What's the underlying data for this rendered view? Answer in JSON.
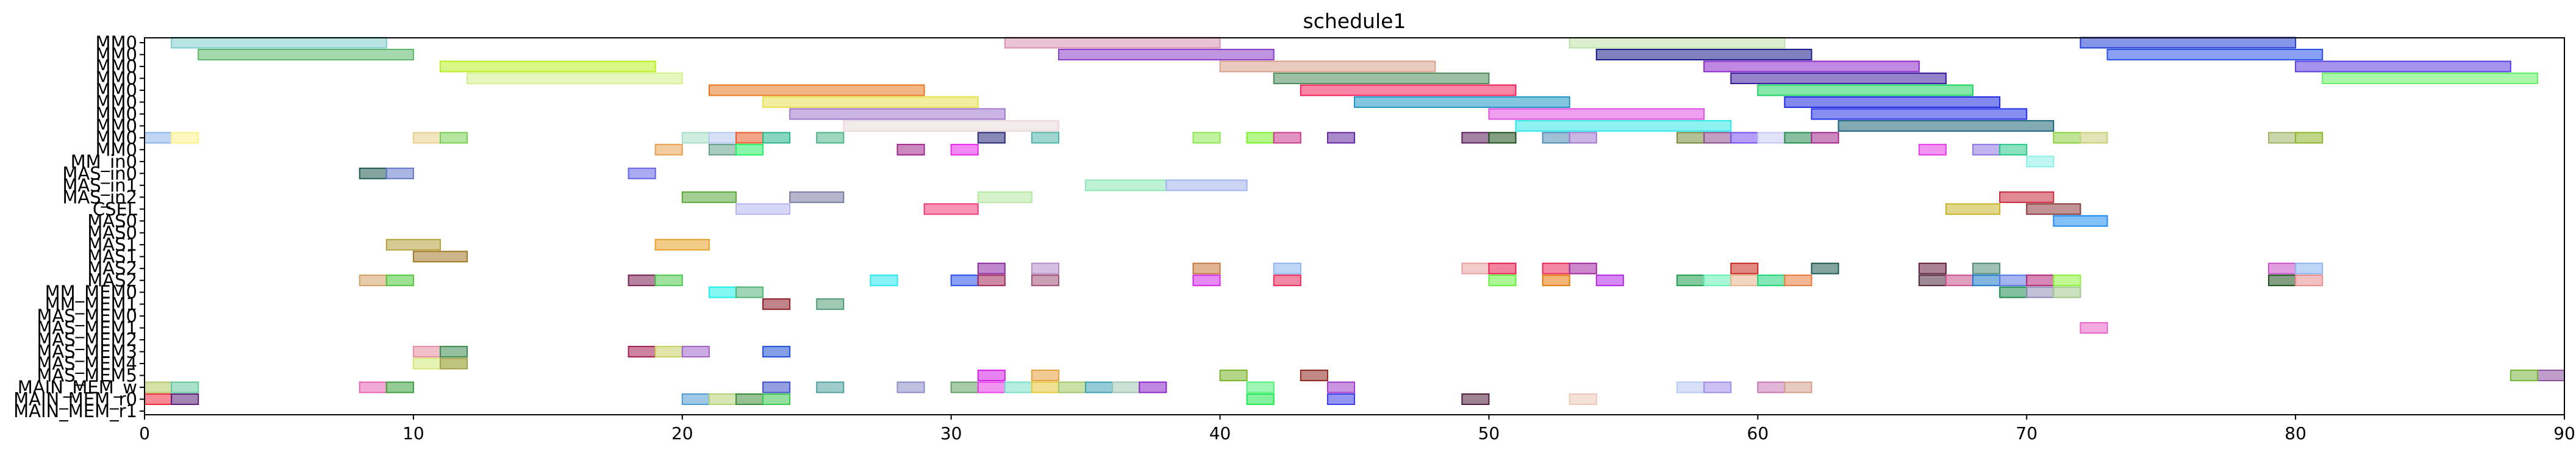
{
  "chart_data": {
    "type": "gantt",
    "title": "schedule1",
    "xlabel": "",
    "ylabel": "",
    "xlim": [
      0,
      90
    ],
    "xticks": [
      0,
      10,
      20,
      30,
      40,
      50,
      60,
      70,
      80,
      90
    ],
    "grid": false,
    "rows": [
      "MM0",
      "MM0",
      "MM0",
      "MM0",
      "MM0",
      "MM0",
      "MM0",
      "MM0",
      "MM0",
      "MM0",
      "MM_in0",
      "MAS_in0",
      "MAS_in1",
      "MAS_in2",
      "CSEL",
      "MAS0",
      "MAS0",
      "MAS1",
      "MAS1",
      "MAS2",
      "MAS2",
      "MM_MEM0",
      "MM_MEM1",
      "MAS_MEM0",
      "MAS_MEM1",
      "MAS_MEM2",
      "MAS_MEM3",
      "MAS_MEM4",
      "MAS_MEM5",
      "MAIN_MEM_w",
      "MAIN_MEM_r0",
      "MAIN_MEM_r1"
    ],
    "bars": [
      {
        "row": 0,
        "start": 1,
        "end": 9,
        "color": "#7fcdcd"
      },
      {
        "row": 0,
        "start": 32,
        "end": 40,
        "color": "#d98fb4"
      },
      {
        "row": 0,
        "start": 53,
        "end": 61,
        "color": "#bde2a8"
      },
      {
        "row": 0,
        "start": 72,
        "end": 80,
        "color": "#1f3fd4"
      },
      {
        "row": 1,
        "start": 2,
        "end": 10,
        "color": "#5cb86c"
      },
      {
        "row": 1,
        "start": 34,
        "end": 42,
        "color": "#8a3dc8"
      },
      {
        "row": 1,
        "start": 54,
        "end": 62,
        "color": "#1a1a8c"
      },
      {
        "row": 1,
        "start": 73,
        "end": 81,
        "color": "#2a52e8"
      },
      {
        "row": 2,
        "start": 11,
        "end": 19,
        "color": "#b8f020"
      },
      {
        "row": 2,
        "start": 40,
        "end": 48,
        "color": "#d9a08c"
      },
      {
        "row": 2,
        "start": 58,
        "end": 66,
        "color": "#8c28c8"
      },
      {
        "row": 2,
        "start": 80,
        "end": 88,
        "color": "#5a3ce0"
      },
      {
        "row": 3,
        "start": 12,
        "end": 20,
        "color": "#d4f08c"
      },
      {
        "row": 3,
        "start": 42,
        "end": 50,
        "color": "#4c8c5a"
      },
      {
        "row": 3,
        "start": 59,
        "end": 67,
        "color": "#3a1a9c"
      },
      {
        "row": 3,
        "start": 81,
        "end": 89,
        "color": "#64f064"
      },
      {
        "row": 4,
        "start": 21,
        "end": 29,
        "color": "#e87820"
      },
      {
        "row": 4,
        "start": 43,
        "end": 51,
        "color": "#f0205a"
      },
      {
        "row": 4,
        "start": 60,
        "end": 68,
        "color": "#20d464"
      },
      {
        "row": 5,
        "start": 23,
        "end": 31,
        "color": "#e8e050"
      },
      {
        "row": 5,
        "start": 45,
        "end": 53,
        "color": "#1e96c8"
      },
      {
        "row": 5,
        "start": 61,
        "end": 69,
        "color": "#1a28e0"
      },
      {
        "row": 6,
        "start": 24,
        "end": 32,
        "color": "#a078d0"
      },
      {
        "row": 6,
        "start": 50,
        "end": 58,
        "color": "#e050e0"
      },
      {
        "row": 6,
        "start": 62,
        "end": 70,
        "color": "#2432e8"
      },
      {
        "row": 7,
        "start": 26,
        "end": 34,
        "color": "#ead8dc"
      },
      {
        "row": 7,
        "start": 51,
        "end": 59,
        "color": "#30e8e8"
      },
      {
        "row": 7,
        "start": 63,
        "end": 71,
        "color": "#1a6478"
      },
      {
        "row": 8,
        "start": 0,
        "end": 1,
        "color": "#8cb4e8"
      },
      {
        "row": 8,
        "start": 1,
        "end": 2,
        "color": "#fff08c"
      },
      {
        "row": 8,
        "start": 10,
        "end": 11,
        "color": "#e8d08c"
      },
      {
        "row": 8,
        "start": 11,
        "end": 12,
        "color": "#78d050"
      },
      {
        "row": 8,
        "start": 20,
        "end": 21,
        "color": "#a8dcc8"
      },
      {
        "row": 8,
        "start": 21,
        "end": 22,
        "color": "#b4c8f0"
      },
      {
        "row": 8,
        "start": 22,
        "end": 23,
        "color": "#e85a28"
      },
      {
        "row": 8,
        "start": 23,
        "end": 24,
        "color": "#28b488"
      },
      {
        "row": 8,
        "start": 25,
        "end": 26,
        "color": "#50b48c"
      },
      {
        "row": 8,
        "start": 31,
        "end": 32,
        "color": "#282878"
      },
      {
        "row": 8,
        "start": 33,
        "end": 34,
        "color": "#50b4a8"
      },
      {
        "row": 8,
        "start": 39,
        "end": 40,
        "color": "#8ce850"
      },
      {
        "row": 8,
        "start": 41,
        "end": 42,
        "color": "#78f028"
      },
      {
        "row": 8,
        "start": 42,
        "end": 43,
        "color": "#c83c8c"
      },
      {
        "row": 8,
        "start": 44,
        "end": 45,
        "color": "#6428a0"
      },
      {
        "row": 8,
        "start": 49,
        "end": 50,
        "color": "#5a1e5a"
      },
      {
        "row": 8,
        "start": 50,
        "end": 51,
        "color": "#1e501e"
      },
      {
        "row": 8,
        "start": 52,
        "end": 53,
        "color": "#508cb4"
      },
      {
        "row": 8,
        "start": 53,
        "end": 54,
        "color": "#a078d0"
      },
      {
        "row": 8,
        "start": 57,
        "end": 58,
        "color": "#788c3c"
      },
      {
        "row": 8,
        "start": 58,
        "end": 59,
        "color": "#8c508c"
      },
      {
        "row": 8,
        "start": 59,
        "end": 60,
        "color": "#7850f0"
      },
      {
        "row": 8,
        "start": 60,
        "end": 61,
        "color": "#c8c8f0"
      },
      {
        "row": 8,
        "start": 61,
        "end": 62,
        "color": "#288c50"
      },
      {
        "row": 8,
        "start": 62,
        "end": 63,
        "color": "#a0288c"
      },
      {
        "row": 8,
        "start": 71,
        "end": 72,
        "color": "#8cd03c"
      },
      {
        "row": 8,
        "start": 72,
        "end": 73,
        "color": "#c8d078"
      },
      {
        "row": 8,
        "start": 79,
        "end": 80,
        "color": "#a0b464"
      },
      {
        "row": 8,
        "start": 80,
        "end": 81,
        "color": "#8cb428"
      },
      {
        "row": 9,
        "start": 19,
        "end": 20,
        "color": "#e8a050"
      },
      {
        "row": 9,
        "start": 21,
        "end": 22,
        "color": "#64a08c"
      },
      {
        "row": 9,
        "start": 22,
        "end": 23,
        "color": "#28f064"
      },
      {
        "row": 9,
        "start": 28,
        "end": 29,
        "color": "#a0288c"
      },
      {
        "row": 9,
        "start": 30,
        "end": 31,
        "color": "#e828e8"
      },
      {
        "row": 9,
        "start": 66,
        "end": 67,
        "color": "#e83ce8"
      },
      {
        "row": 9,
        "start": 68,
        "end": 69,
        "color": "#8c78e0"
      },
      {
        "row": 9,
        "start": 69,
        "end": 70,
        "color": "#28c88c"
      },
      {
        "row": 10,
        "start": 70,
        "end": 71,
        "color": "#8cf0e8"
      },
      {
        "row": 11,
        "start": 8,
        "end": 9,
        "color": "#1e5a50"
      },
      {
        "row": 11,
        "start": 9,
        "end": 10,
        "color": "#6478c8"
      },
      {
        "row": 11,
        "start": 18,
        "end": 19,
        "color": "#6464e8"
      },
      {
        "row": 12,
        "start": 35,
        "end": 38,
        "color": "#8ce8b4"
      },
      {
        "row": 12,
        "start": 38,
        "end": 41,
        "color": "#a0b4f0"
      },
      {
        "row": 13,
        "start": 20,
        "end": 22,
        "color": "#5aa83c"
      },
      {
        "row": 13,
        "start": 24,
        "end": 26,
        "color": "#7878a0"
      },
      {
        "row": 13,
        "start": 31,
        "end": 33,
        "color": "#b4e8a0"
      },
      {
        "row": 13,
        "start": 69,
        "end": 71,
        "color": "#c8283c"
      },
      {
        "row": 14,
        "start": 22,
        "end": 24,
        "color": "#b4b4f0"
      },
      {
        "row": 14,
        "start": 29,
        "end": 31,
        "color": "#f03c78"
      },
      {
        "row": 14,
        "start": 67,
        "end": 69,
        "color": "#c8b428"
      },
      {
        "row": 14,
        "start": 70,
        "end": 72,
        "color": "#8c3c3c"
      },
      {
        "row": 15,
        "start": 71,
        "end": 73,
        "color": "#1e8cf0"
      },
      {
        "row": 17,
        "start": 9,
        "end": 11,
        "color": "#b4a03c"
      },
      {
        "row": 17,
        "start": 19,
        "end": 21,
        "color": "#e8a028"
      },
      {
        "row": 18,
        "start": 10,
        "end": 12,
        "color": "#a07828"
      },
      {
        "row": 19,
        "start": 31,
        "end": 32,
        "color": "#8c28a0"
      },
      {
        "row": 19,
        "start": 33,
        "end": 34,
        "color": "#b48cc8"
      },
      {
        "row": 19,
        "start": 39,
        "end": 40,
        "color": "#c8783c"
      },
      {
        "row": 19,
        "start": 42,
        "end": 43,
        "color": "#8cb4f0"
      },
      {
        "row": 19,
        "start": 49,
        "end": 50,
        "color": "#e8a0a0"
      },
      {
        "row": 19,
        "start": 50,
        "end": 51,
        "color": "#e81e50"
      },
      {
        "row": 19,
        "start": 52,
        "end": 53,
        "color": "#e8285a"
      },
      {
        "row": 19,
        "start": 53,
        "end": 54,
        "color": "#a028a0"
      },
      {
        "row": 19,
        "start": 59,
        "end": 60,
        "color": "#c8281e"
      },
      {
        "row": 19,
        "start": 62,
        "end": 63,
        "color": "#1e5a50"
      },
      {
        "row": 19,
        "start": 66,
        "end": 67,
        "color": "#641e3c"
      },
      {
        "row": 19,
        "start": 68,
        "end": 69,
        "color": "#508c78"
      },
      {
        "row": 19,
        "start": 79,
        "end": 80,
        "color": "#c850c8"
      },
      {
        "row": 19,
        "start": 80,
        "end": 81,
        "color": "#8cb4f0"
      },
      {
        "row": 20,
        "start": 8,
        "end": 9,
        "color": "#d4a064"
      },
      {
        "row": 20,
        "start": 9,
        "end": 10,
        "color": "#50c83c"
      },
      {
        "row": 20,
        "start": 18,
        "end": 19,
        "color": "#781e50"
      },
      {
        "row": 20,
        "start": 19,
        "end": 20,
        "color": "#50c850"
      },
      {
        "row": 20,
        "start": 27,
        "end": 28,
        "color": "#28e8f0"
      },
      {
        "row": 20,
        "start": 30,
        "end": 31,
        "color": "#2850e8"
      },
      {
        "row": 20,
        "start": 31,
        "end": 32,
        "color": "#a0285a"
      },
      {
        "row": 20,
        "start": 33,
        "end": 34,
        "color": "#a05078"
      },
      {
        "row": 20,
        "start": 39,
        "end": 40,
        "color": "#d428e8"
      },
      {
        "row": 20,
        "start": 42,
        "end": 43,
        "color": "#e8285a"
      },
      {
        "row": 20,
        "start": 50,
        "end": 51,
        "color": "#64f03c"
      },
      {
        "row": 20,
        "start": 52,
        "end": 53,
        "color": "#e8780a"
      },
      {
        "row": 20,
        "start": 54,
        "end": 55,
        "color": "#b428e8"
      },
      {
        "row": 20,
        "start": 57,
        "end": 58,
        "color": "#1ea050"
      },
      {
        "row": 20,
        "start": 58,
        "end": 59,
        "color": "#64f0b4"
      },
      {
        "row": 20,
        "start": 59,
        "end": 60,
        "color": "#e8b48c"
      },
      {
        "row": 20,
        "start": 60,
        "end": 61,
        "color": "#1ed478"
      },
      {
        "row": 20,
        "start": 61,
        "end": 62,
        "color": "#e8783c"
      },
      {
        "row": 20,
        "start": 66,
        "end": 67,
        "color": "#50283c"
      },
      {
        "row": 20,
        "start": 67,
        "end": 68,
        "color": "#c8508c"
      },
      {
        "row": 20,
        "start": 68,
        "end": 69,
        "color": "#1e78c8"
      },
      {
        "row": 20,
        "start": 69,
        "end": 70,
        "color": "#5a78e8"
      },
      {
        "row": 20,
        "start": 70,
        "end": 71,
        "color": "#b42878"
      },
      {
        "row": 20,
        "start": 71,
        "end": 72,
        "color": "#8cf03c"
      },
      {
        "row": 20,
        "start": 79,
        "end": 80,
        "color": "#1e501e"
      },
      {
        "row": 20,
        "start": 80,
        "end": 81,
        "color": "#e88c8c"
      },
      {
        "row": 21,
        "start": 21,
        "end": 22,
        "color": "#1ef0e8"
      },
      {
        "row": 21,
        "start": 22,
        "end": 23,
        "color": "#50b478"
      },
      {
        "row": 21,
        "start": 69,
        "end": 70,
        "color": "#1e8c50"
      },
      {
        "row": 21,
        "start": 70,
        "end": 71,
        "color": "#8c8cb4"
      },
      {
        "row": 21,
        "start": 71,
        "end": 72,
        "color": "#a0c88c"
      },
      {
        "row": 22,
        "start": 23,
        "end": 24,
        "color": "#8c1e28"
      },
      {
        "row": 22,
        "start": 25,
        "end": 26,
        "color": "#509a78"
      },
      {
        "row": 24,
        "start": 72,
        "end": 73,
        "color": "#e864c8"
      },
      {
        "row": 26,
        "start": 10,
        "end": 11,
        "color": "#e88ca0"
      },
      {
        "row": 26,
        "start": 11,
        "end": 12,
        "color": "#3c8c50"
      },
      {
        "row": 26,
        "start": 18,
        "end": 19,
        "color": "#a01e50"
      },
      {
        "row": 26,
        "start": 19,
        "end": 20,
        "color": "#c8d064"
      },
      {
        "row": 26,
        "start": 20,
        "end": 21,
        "color": "#a064c8"
      },
      {
        "row": 26,
        "start": 23,
        "end": 24,
        "color": "#1e50d4"
      },
      {
        "row": 27,
        "start": 10,
        "end": 12,
        "color": "#d4e878"
      },
      {
        "row": 27,
        "start": 11,
        "end": 12,
        "color": "#a0a050"
      },
      {
        "row": 28,
        "start": 31,
        "end": 32,
        "color": "#d41ee8"
      },
      {
        "row": 28,
        "start": 33,
        "end": 34,
        "color": "#e8a03c"
      },
      {
        "row": 28,
        "start": 40,
        "end": 41,
        "color": "#78b428"
      },
      {
        "row": 28,
        "start": 43,
        "end": 44,
        "color": "#8c281e"
      },
      {
        "row": 28,
        "start": 89,
        "end": 90,
        "color": "#8c50a0"
      },
      {
        "row": 28,
        "start": 88,
        "end": 89,
        "color": "#78b43c"
      },
      {
        "row": 29,
        "start": 0,
        "end": 1,
        "color": "#b4c864"
      },
      {
        "row": 29,
        "start": 1,
        "end": 2,
        "color": "#64c8a0"
      },
      {
        "row": 29,
        "start": 8,
        "end": 9,
        "color": "#e864b4"
      },
      {
        "row": 29,
        "start": 9,
        "end": 10,
        "color": "#3ca03c"
      },
      {
        "row": 29,
        "start": 23,
        "end": 24,
        "color": "#3c50c8"
      },
      {
        "row": 29,
        "start": 25,
        "end": 26,
        "color": "#50a0a0"
      },
      {
        "row": 29,
        "start": 28,
        "end": 29,
        "color": "#8c8cc8"
      },
      {
        "row": 29,
        "start": 30,
        "end": 31,
        "color": "#64a064"
      },
      {
        "row": 29,
        "start": 31,
        "end": 32,
        "color": "#e83ce8"
      },
      {
        "row": 29,
        "start": 32,
        "end": 33,
        "color": "#78e0c8"
      },
      {
        "row": 29,
        "start": 33,
        "end": 34,
        "color": "#e8c83c"
      },
      {
        "row": 29,
        "start": 34,
        "end": 35,
        "color": "#a0c864"
      },
      {
        "row": 29,
        "start": 35,
        "end": 36,
        "color": "#3ca0b4"
      },
      {
        "row": 29,
        "start": 36,
        "end": 37,
        "color": "#a0c8b4"
      },
      {
        "row": 29,
        "start": 37,
        "end": 38,
        "color": "#8c28c8"
      },
      {
        "row": 29,
        "start": 41,
        "end": 42,
        "color": "#50f078"
      },
      {
        "row": 29,
        "start": 44,
        "end": 45,
        "color": "#a03cc8"
      },
      {
        "row": 29,
        "start": 57,
        "end": 58,
        "color": "#b4c8f0"
      },
      {
        "row": 29,
        "start": 58,
        "end": 59,
        "color": "#a08ce8"
      },
      {
        "row": 29,
        "start": 60,
        "end": 61,
        "color": "#c878b4"
      },
      {
        "row": 29,
        "start": 61,
        "end": 62,
        "color": "#d4a08c"
      },
      {
        "row": 30,
        "start": 0,
        "end": 1,
        "color": "#f0283c"
      },
      {
        "row": 30,
        "start": 1,
        "end": 2,
        "color": "#5a1e78"
      },
      {
        "row": 30,
        "start": 20,
        "end": 21,
        "color": "#509ad4"
      },
      {
        "row": 30,
        "start": 21,
        "end": 22,
        "color": "#b4d478"
      },
      {
        "row": 30,
        "start": 22,
        "end": 23,
        "color": "#3c8c3c"
      },
      {
        "row": 30,
        "start": 23,
        "end": 24,
        "color": "#3cc850"
      },
      {
        "row": 30,
        "start": 41,
        "end": 42,
        "color": "#1ee850"
      },
      {
        "row": 30,
        "start": 44,
        "end": 45,
        "color": "#3c3ce8"
      },
      {
        "row": 30,
        "start": 49,
        "end": 50,
        "color": "#501e3c"
      },
      {
        "row": 30,
        "start": 53,
        "end": 54,
        "color": "#ecc8b8"
      }
    ]
  }
}
